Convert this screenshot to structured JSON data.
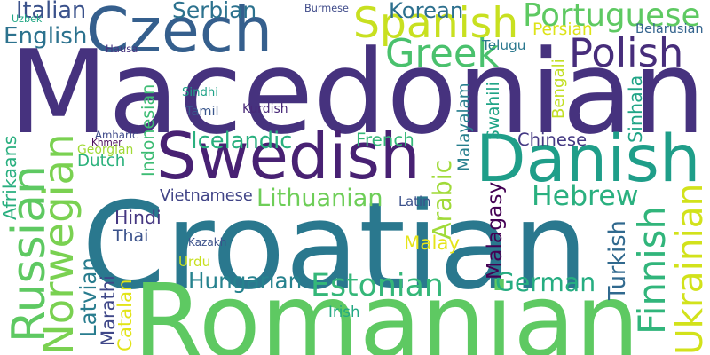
{
  "words": [
    {
      "text": "Macedonian",
      "color": "#46327e"
    },
    {
      "text": "Croatian",
      "color": "#2a788e"
    },
    {
      "text": "Romanian",
      "color": "#5ec962"
    },
    {
      "text": "Swedish",
      "color": "#482173"
    },
    {
      "text": "Danish",
      "color": "#1f9e89"
    },
    {
      "text": "Czech",
      "color": "#355f8d"
    },
    {
      "text": "Spanish",
      "color": "#c8e020"
    },
    {
      "text": "Portuguese",
      "color": "#5ec962"
    },
    {
      "text": "Polish",
      "color": "#472d7b"
    },
    {
      "text": "Greek",
      "color": "#4ac16d"
    },
    {
      "text": "Serbian",
      "color": "#2c728e"
    },
    {
      "text": "Korean",
      "color": "#2d708e"
    },
    {
      "text": "Italian",
      "color": "#3b528b"
    },
    {
      "text": "English",
      "color": "#2c728e"
    },
    {
      "text": "Norwegian",
      "color": "#7ad151"
    },
    {
      "text": "Russian",
      "color": "#5ec962"
    },
    {
      "text": "Hebrew",
      "color": "#2ab07f"
    },
    {
      "text": "Finnish",
      "color": "#31b57b"
    },
    {
      "text": "Ukrainian",
      "color": "#d2e21b"
    },
    {
      "text": "German",
      "color": "#26ad81"
    },
    {
      "text": "Estonian",
      "color": "#35b779"
    },
    {
      "text": "Hungarian",
      "color": "#26828e"
    },
    {
      "text": "Lithuanian",
      "color": "#6ece58"
    },
    {
      "text": "Icelandic",
      "color": "#2ab07f"
    },
    {
      "text": "Indonesian",
      "color": "#3dbc74"
    },
    {
      "text": "Vietnamese",
      "color": "#414487"
    },
    {
      "text": "French",
      "color": "#35b779"
    },
    {
      "text": "Chinese",
      "color": "#443983"
    },
    {
      "text": "Sinhala",
      "color": "#20a486"
    },
    {
      "text": "Bengali",
      "color": "#c2df23"
    },
    {
      "text": "Persian",
      "color": "#dde318"
    },
    {
      "text": "Belarusian",
      "color": "#33638d"
    },
    {
      "text": "Telugu",
      "color": "#2a788e"
    },
    {
      "text": "Burmese",
      "color": "#3e4a89"
    },
    {
      "text": "Hausa",
      "color": "#46337f"
    },
    {
      "text": "Uzbek",
      "color": "#22a785"
    },
    {
      "text": "Sindhi",
      "color": "#1fa287"
    },
    {
      "text": "Tamil",
      "color": "#39568c"
    },
    {
      "text": "Kurdish",
      "color": "#482878"
    },
    {
      "text": "Amharic",
      "color": "#3e4989"
    },
    {
      "text": "Khmer",
      "color": "#450457"
    },
    {
      "text": "Georgian",
      "color": "#a2da37"
    },
    {
      "text": "Afrikaans",
      "color": "#29af7f"
    },
    {
      "text": "Dutch",
      "color": "#2db27d"
    },
    {
      "text": "Hindi",
      "color": "#453781"
    },
    {
      "text": "Thai",
      "color": "#3b528b"
    },
    {
      "text": "Urdu",
      "color": "#c8e020"
    },
    {
      "text": "Latvian",
      "color": "#287c8e"
    },
    {
      "text": "Marathi",
      "color": "#3f4788"
    },
    {
      "text": "Catalan",
      "color": "#e2e418"
    },
    {
      "text": "Kazakh",
      "color": "#3b518b"
    },
    {
      "text": "Irish",
      "color": "#23a983"
    },
    {
      "text": "Malay",
      "color": "#e5e419"
    },
    {
      "text": "Malagasy",
      "color": "#440154"
    },
    {
      "text": "Turkish",
      "color": "#30698e"
    },
    {
      "text": "Arabic",
      "color": "#a0da39"
    },
    {
      "text": "Latin",
      "color": "#3b518b"
    },
    {
      "text": "Swahili",
      "color": "#20a486"
    },
    {
      "text": "Malayalam",
      "color": "#277f8e"
    }
  ]
}
